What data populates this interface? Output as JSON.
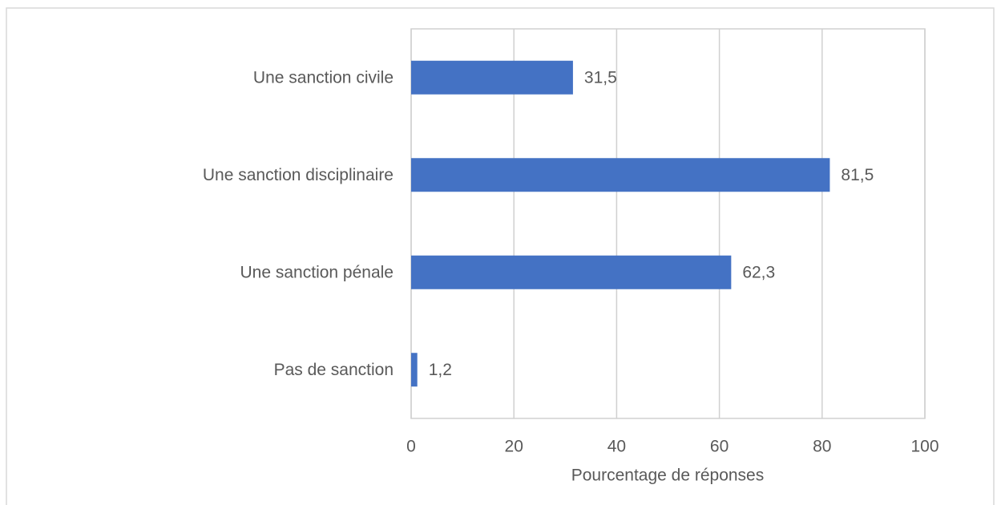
{
  "chart_data": {
    "type": "hbar",
    "categories": [
      "Une sanction civile",
      "Une sanction disciplinaire",
      "Une sanction pénale",
      "Pas de sanction"
    ],
    "values": [
      31.5,
      81.5,
      62.3,
      1.2
    ],
    "value_labels": [
      "31,5",
      "81,5",
      "62,3",
      "1,2"
    ],
    "color": "#4472c4",
    "xlim": [
      0,
      100
    ],
    "xticks": [
      0,
      20,
      40,
      60,
      80,
      100
    ],
    "xlabel": "Pourcentage de réponses",
    "grid": true
  }
}
